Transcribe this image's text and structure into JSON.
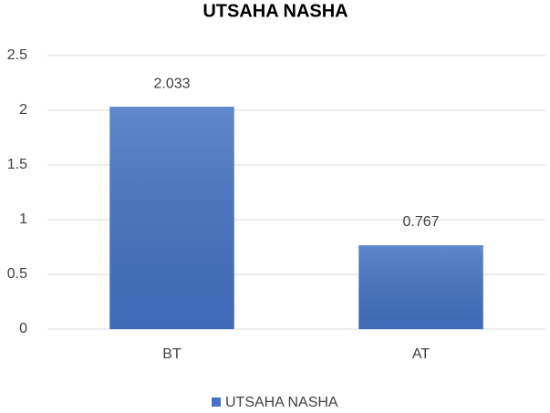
{
  "chart_data": {
    "type": "bar",
    "title": "UTSAHA NASHA",
    "categories": [
      "BT",
      "AT"
    ],
    "series": [
      {
        "name": "UTSAHA NASHA",
        "color": "#4472c4",
        "values": [
          2.033,
          0.767
        ]
      }
    ],
    "ylim": [
      0,
      2.5
    ],
    "yticks": [
      0,
      0.5,
      1,
      1.5,
      2,
      2.5
    ],
    "grid": true,
    "legend": "bottom"
  }
}
